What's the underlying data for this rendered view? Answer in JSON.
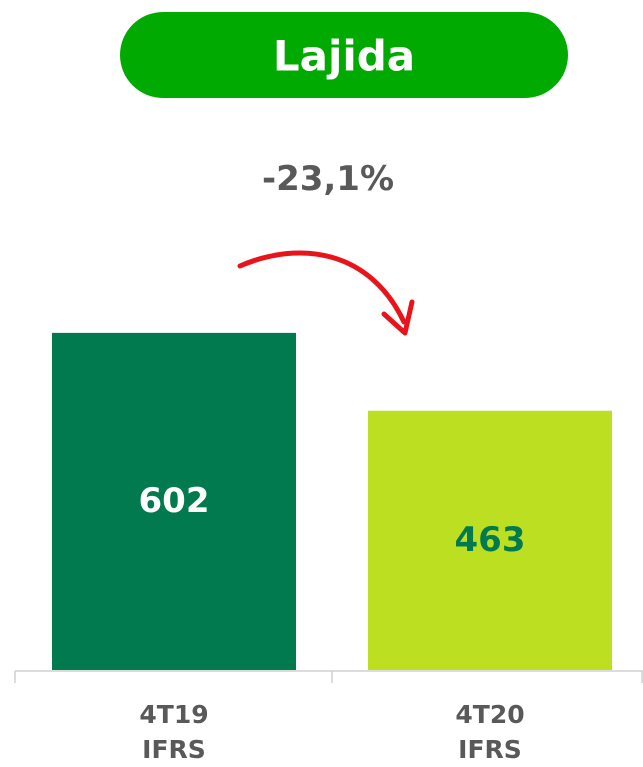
{
  "chart_data": {
    "type": "bar",
    "title": "Lajida",
    "annotation": "-23,1%",
    "categories": [
      "4T19\nIFRS",
      "4T20\nIFRS"
    ],
    "values": [
      602,
      463
    ],
    "colors": [
      "#007a4e",
      "#bce021"
    ],
    "label_colors": [
      "#ffffff",
      "#007a4e"
    ],
    "title_color": "#00aa00",
    "arrow_color": "#e8141c"
  }
}
